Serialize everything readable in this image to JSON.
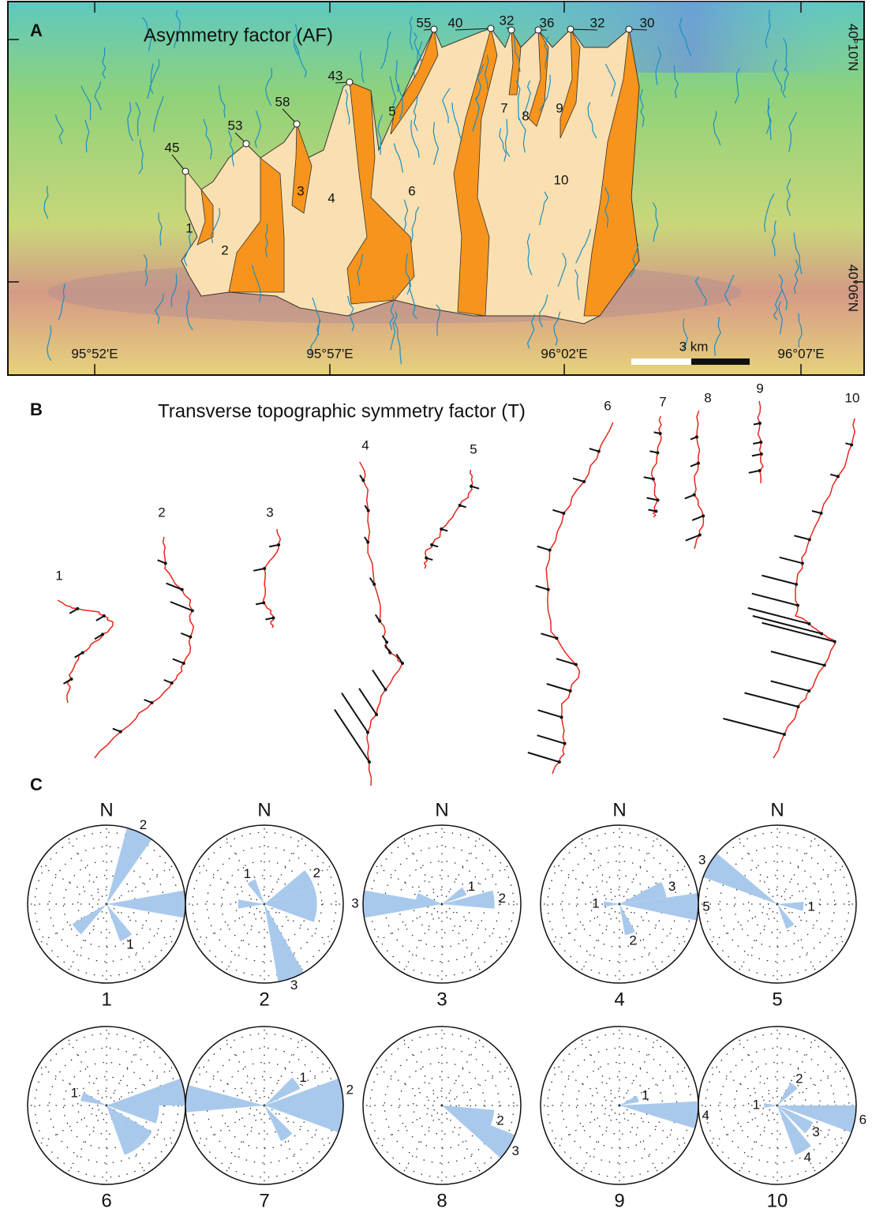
{
  "panel_a": {
    "label": "A",
    "title": "Asymmetry factor (AF)",
    "outlets": [
      45,
      53,
      58,
      43,
      55,
      40,
      32,
      36,
      32,
      30
    ],
    "basins": [
      "1",
      "2",
      "3",
      "4",
      "5",
      "6",
      "7",
      "8",
      "9",
      "10"
    ],
    "longitudes": [
      "95°52'E",
      "95°57'E",
      "96°02'E",
      "96°07'E"
    ],
    "latitudes": [
      "40°10'N",
      "40°06'N"
    ],
    "scale_bar": "3 km"
  },
  "panel_b": {
    "label": "B",
    "title": "Transverse topographic symmetry factor (T)",
    "profiles": [
      "1",
      "2",
      "3",
      "4",
      "5",
      "6",
      "7",
      "8",
      "9",
      "10"
    ]
  },
  "panel_c": {
    "label": "C",
    "north": "N",
    "sector_width": 20,
    "color": "#a9c9ec",
    "roses": [
      {
        "name": "1",
        "rlim": [
          0,
          2
        ],
        "petals": [
          {
            "azimuth": 25,
            "count": 2,
            "labeled": true
          },
          {
            "azimuth": 90,
            "count": 2,
            "labeled": false
          },
          {
            "azimuth": 150,
            "count": 1,
            "labeled": true
          },
          {
            "azimuth": 230,
            "count": 1,
            "labeled": false
          }
        ]
      },
      {
        "name": "2",
        "rlim": [
          0,
          3
        ],
        "petals": [
          {
            "azimuth": 60,
            "count": 2,
            "labeled": true
          },
          {
            "azimuth": 80,
            "count": 2,
            "labeled": false
          },
          {
            "azimuth": 100,
            "count": 2,
            "labeled": false
          },
          {
            "azimuth": 160,
            "count": 3,
            "labeled": true
          },
          {
            "azimuth": 270,
            "count": 1,
            "labeled": false
          },
          {
            "azimuth": 330,
            "count": 1,
            "labeled": true
          }
        ]
      },
      {
        "name": "3",
        "rlim": [
          0,
          3
        ],
        "petals": [
          {
            "azimuth": 270,
            "count": 3,
            "labeled": true
          },
          {
            "azimuth": 285,
            "count": 1,
            "labeled": false
          },
          {
            "azimuth": 60,
            "count": 1,
            "labeled": true
          },
          {
            "azimuth": 85,
            "count": 2,
            "labeled": true
          }
        ]
      },
      {
        "name": "4",
        "rlim": [
          0,
          5
        ],
        "petals": [
          {
            "azimuth": 270,
            "count": 1,
            "labeled": true
          },
          {
            "azimuth": 72,
            "count": 3,
            "labeled": true
          },
          {
            "azimuth": 92,
            "count": 5,
            "labeled": true
          },
          {
            "azimuth": 160,
            "count": 2,
            "labeled": true
          }
        ]
      },
      {
        "name": "5",
        "rlim": [
          0,
          3
        ],
        "petals": [
          {
            "azimuth": 300,
            "count": 3,
            "labeled": true
          },
          {
            "azimuth": 95,
            "count": 1,
            "labeled": true
          },
          {
            "azimuth": 150,
            "count": 1,
            "labeled": false
          }
        ]
      },
      {
        "name": "6",
        "rlim": [
          0,
          3
        ],
        "petals": [
          {
            "azimuth": 80,
            "count": 3,
            "labeled": false
          },
          {
            "azimuth": 100,
            "count": 2,
            "labeled": false
          },
          {
            "azimuth": 130,
            "count": 2,
            "labeled": false
          },
          {
            "azimuth": 150,
            "count": 2,
            "labeled": false
          },
          {
            "azimuth": 290,
            "count": 1,
            "labeled": true
          }
        ]
      },
      {
        "name": "7",
        "rlim": [
          0,
          2
        ],
        "petals": [
          {
            "azimuth": 275,
            "count": 2,
            "labeled": false
          },
          {
            "azimuth": 80,
            "count": 2,
            "labeled": true
          },
          {
            "azimuth": 100,
            "count": 2,
            "labeled": false
          },
          {
            "azimuth": 55,
            "count": 1,
            "labeled": true
          },
          {
            "azimuth": 145,
            "count": 1,
            "labeled": false
          }
        ]
      },
      {
        "name": "8",
        "rlim": [
          0,
          3
        ],
        "petals": [
          {
            "azimuth": 105,
            "count": 2,
            "labeled": true
          },
          {
            "azimuth": 122,
            "count": 3,
            "labeled": true
          }
        ]
      },
      {
        "name": "9",
        "rlim": [
          0,
          4
        ],
        "petals": [
          {
            "azimuth": 97,
            "count": 4,
            "labeled": true
          },
          {
            "azimuth": 70,
            "count": 1,
            "labeled": true
          }
        ]
      },
      {
        "name": "10",
        "rlim": [
          0,
          6
        ],
        "petals": [
          {
            "azimuth": 100,
            "count": 6,
            "labeled": true
          },
          {
            "azimuth": 40,
            "count": 2,
            "labeled": true
          },
          {
            "azimuth": 125,
            "count": 3,
            "labeled": true
          },
          {
            "azimuth": 150,
            "count": 4,
            "labeled": true
          },
          {
            "azimuth": 270,
            "count": 1,
            "labeled": true
          }
        ]
      }
    ]
  }
}
